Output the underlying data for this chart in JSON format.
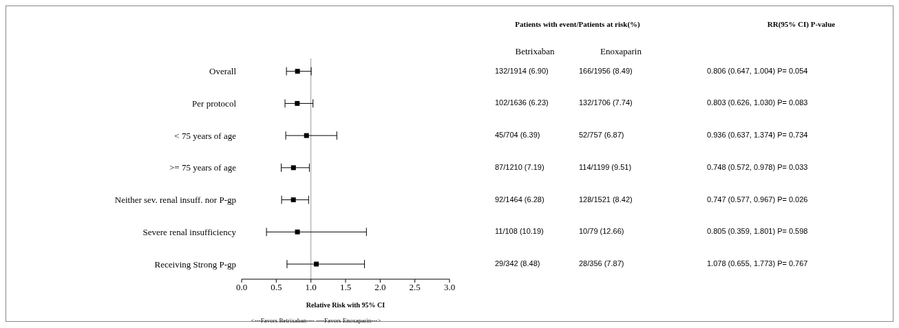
{
  "chart_data": {
    "type": "scatter",
    "orientation": "horizontal",
    "xlabel": "Relative Risk with 95% CI",
    "categories": [
      "Overall",
      "Per protocol",
      "< 75 years of age",
      ">= 75 years of age",
      "Neither sev. renal insuff. nor P-gp",
      "Severe renal insufficiency",
      "Receiving Strong P-gp"
    ],
    "values": [
      0.806,
      0.803,
      0.936,
      0.748,
      0.747,
      0.805,
      1.078
    ],
    "errors": [
      [
        0.647,
        1.004
      ],
      [
        0.626,
        1.03
      ],
      [
        0.637,
        1.374
      ],
      [
        0.572,
        0.978
      ],
      [
        0.577,
        0.967
      ],
      [
        0.359,
        1.801
      ],
      [
        0.655,
        1.773
      ]
    ],
    "color": "#000000",
    "marker": "square",
    "xlim": [
      0,
      3
    ],
    "xticks": [
      {
        "value": 0,
        "label": "0.0"
      },
      {
        "value": 0.5,
        "label": "0.5"
      },
      {
        "value": 1,
        "label": "1.0"
      },
      {
        "value": 1.5,
        "label": "1.5"
      },
      {
        "value": 2,
        "label": "2.0"
      },
      {
        "value": 2.5,
        "label": "2.5"
      },
      {
        "value": 3,
        "label": "3.0"
      }
    ],
    "ref_lines": [
      {
        "axis": "x",
        "value": 1,
        "color": "#999999"
      }
    ],
    "value_labels": [
      "0.806 (0.647, 1.004) P= 0.054",
      "0.803 (0.626, 1.030) P= 0.083",
      "0.936 (0.637, 1.374) P= 0.734",
      "0.748 (0.572, 0.978) P= 0.033",
      "0.747 (0.577, 0.967) P= 0.026",
      "0.805 (0.359, 1.801) P= 0.598",
      "1.078 (0.655, 1.773) P= 0.767"
    ],
    "annotations": [
      "Patients with event/Patients at risk(%)",
      "RR(95% CI)  P-value",
      "Betrixaban",
      "Enoxaparin",
      "132/1914 (6.90)",
      "166/1956 (8.49)",
      "102/1636 (6.23)",
      "132/1706 (7.74)",
      "45/704 (6.39)",
      "52/757 (6.87)",
      "87/1210 (7.19)",
      "114/1199 (9.51)",
      "92/1464 (6.28)",
      "128/1521 (8.42)",
      "11/108 (10.19)",
      "10/79 (12.66)",
      "29/342 (8.48)",
      "28/356 (7.87)",
      "<---Favors Betrixaban---- ----Favors Enoxaparin--->"
    ]
  }
}
